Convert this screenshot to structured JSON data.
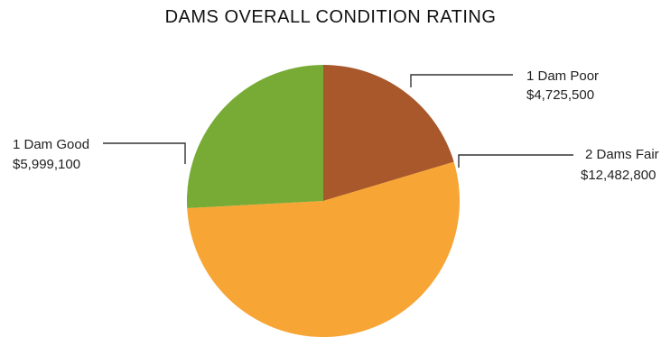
{
  "chart_data": {
    "type": "pie",
    "title": "DAMS OVERALL CONDITION RATING",
    "slices": [
      {
        "label": "1 Dam Poor",
        "value_text": "$4,725,500",
        "value": 4725500,
        "color": "#a8582a"
      },
      {
        "label": "2 Dams Fair",
        "value_text": "$12,482,800",
        "value": 12482800,
        "color": "#f7a535"
      },
      {
        "label": "1 Dam Good",
        "value_text": "$5,999,100",
        "value": 5999100,
        "color": "#78ab36"
      }
    ],
    "legend": "none",
    "label_placement": "outside-with-leader-lines"
  }
}
